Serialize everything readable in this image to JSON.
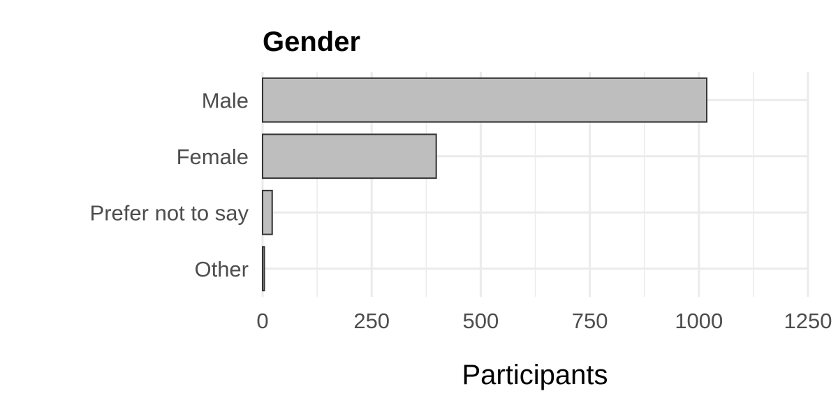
{
  "chart_data": {
    "type": "bar",
    "orientation": "horizontal",
    "title": "Gender",
    "xlabel": "Participants",
    "ylabel": "",
    "categories": [
      "Male",
      "Female",
      "Prefer not to say",
      "Other"
    ],
    "values": [
      1018,
      398,
      22,
      4
    ],
    "xlim": [
      0,
      1250
    ],
    "xticks": [
      0,
      250,
      500,
      750,
      1000,
      1250
    ],
    "xtick_labels": [
      "0",
      "250",
      "500",
      "750",
      "1000",
      "1250"
    ],
    "grid": true,
    "legend": "none",
    "colors": {
      "bar_fill": "#bebebe",
      "bar_stroke": "#333333",
      "grid": "#ebebeb"
    }
  }
}
